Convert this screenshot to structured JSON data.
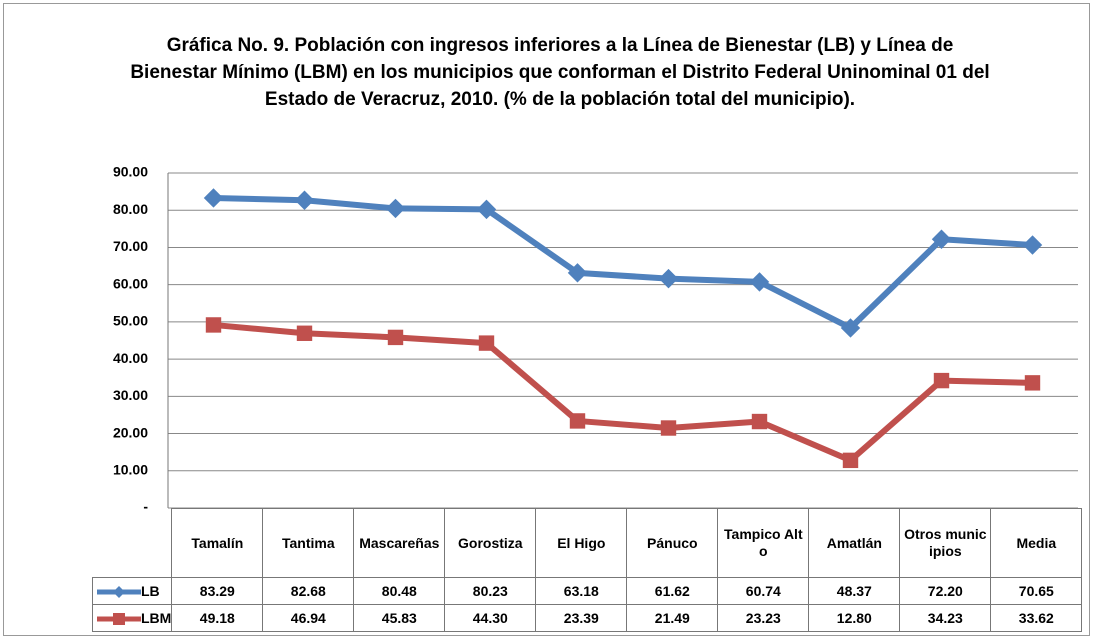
{
  "chart_data": {
    "type": "line",
    "title": "Gráfica No. 9. Población con ingresos inferiores a la Línea de Bienestar (LB) y Línea de Bienestar Mínimo (LBM) en los municipios que conforman el Distrito Federal Uninominal 01 del Estado de Veracruz, 2010. (% de la población total del municipio).",
    "categories": [
      "Tamalín",
      "Tantima",
      "Mascareñas",
      "Gorostiza",
      "El Higo",
      "Pánuco",
      "Tampico Alto",
      "Amatlán",
      "Otros municipios",
      "Media"
    ],
    "series": [
      {
        "name": "LB",
        "color": "#4f81bd",
        "marker": "diamond",
        "values": [
          83.29,
          82.68,
          80.48,
          80.23,
          63.18,
          61.62,
          60.74,
          48.37,
          72.2,
          70.65
        ],
        "value_labels": [
          "83.29",
          "82.68",
          "80.48",
          "80.23",
          "63.18",
          "61.62",
          "60.74",
          "48.37",
          "72.20",
          "70.65"
        ]
      },
      {
        "name": "LBM",
        "color": "#c0504d",
        "marker": "square",
        "values": [
          49.18,
          46.94,
          45.83,
          44.3,
          23.39,
          21.49,
          23.23,
          12.8,
          34.23,
          33.62
        ],
        "value_labels": [
          "49.18",
          "46.94",
          "45.83",
          "44.30",
          "23.39",
          "21.49",
          "23.23",
          "12.80",
          "34.23",
          "33.62"
        ]
      }
    ],
    "ylim": [
      0,
      90
    ],
    "yticks": [
      {
        "value": 0,
        "label": "-"
      },
      {
        "value": 10,
        "label": "10.00"
      },
      {
        "value": 20,
        "label": "20.00"
      },
      {
        "value": 30,
        "label": "30.00"
      },
      {
        "value": 40,
        "label": "40.00"
      },
      {
        "value": 50,
        "label": "50.00"
      },
      {
        "value": 60,
        "label": "60.00"
      },
      {
        "value": 70,
        "label": "70.00"
      },
      {
        "value": 80,
        "label": "80.00"
      },
      {
        "value": 90,
        "label": "90.00"
      }
    ],
    "grid": true
  }
}
